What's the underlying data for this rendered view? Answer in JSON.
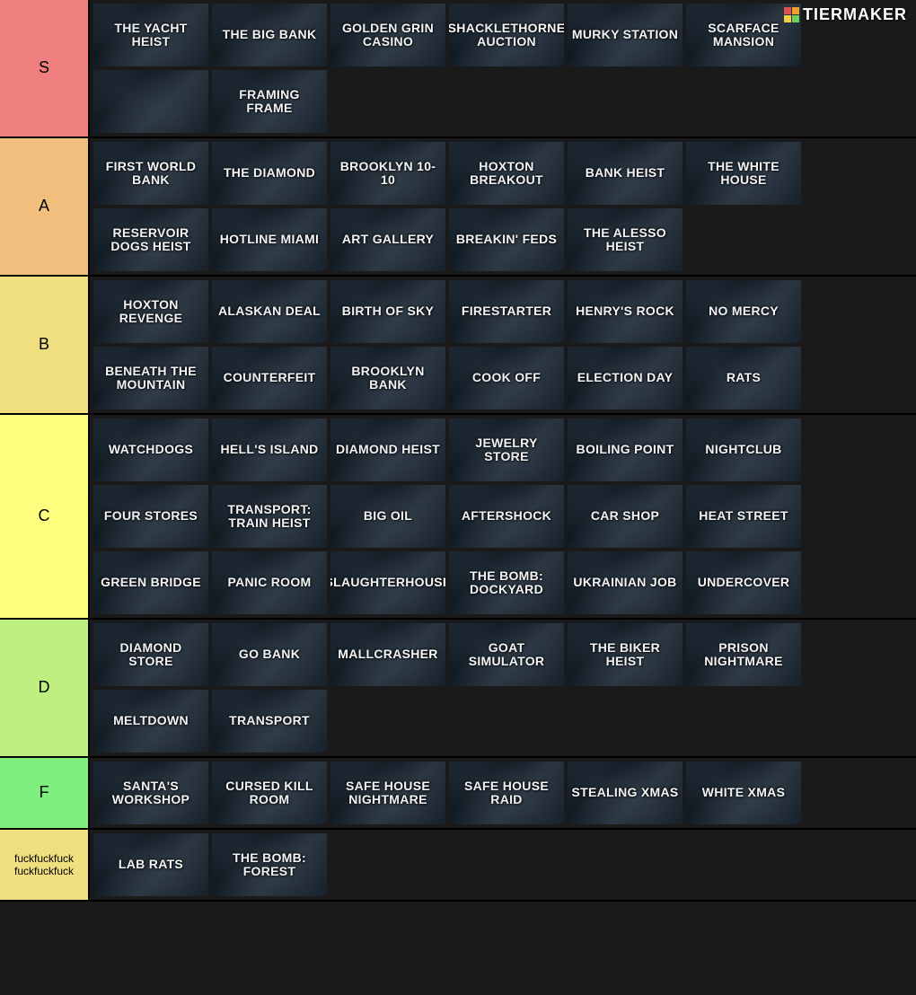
{
  "watermark": "TIERMAKER",
  "tier_colors": {
    "S": "#f07f7f",
    "A": "#f0bf7e",
    "B": "#f0df7f",
    "C": "#feff7f",
    "D": "#bff07f",
    "F": "#7fef7f",
    "G": "#f0df7f"
  },
  "tiers": [
    {
      "label": "S",
      "color_key": "S",
      "small": false,
      "items": [
        "THE YACHT HEIST",
        "THE BIG BANK",
        "GOLDEN GRIN CASINO",
        "SHACKLETHORNE AUCTION",
        "MURKY STATION",
        "SCARFACE MANSION",
        "",
        "FRAMING FRAME"
      ]
    },
    {
      "label": "A",
      "color_key": "A",
      "small": false,
      "items": [
        "FIRST WORLD BANK",
        "THE DIAMOND",
        "BROOKLYN 10-10",
        "HOXTON BREAKOUT",
        "BANK HEIST",
        "THE WHITE HOUSE",
        "RESERVOIR DOGS HEIST",
        "HOTLINE MIAMI",
        "ART GALLERY",
        "BREAKIN' FEDS",
        "THE ALESSO HEIST"
      ]
    },
    {
      "label": "B",
      "color_key": "B",
      "small": false,
      "items": [
        "HOXTON REVENGE",
        "ALASKAN DEAL",
        "BIRTH OF SKY",
        "FIRESTARTER",
        "HENRY'S ROCK",
        "NO MERCY",
        "BENEATH THE MOUNTAIN",
        "COUNTERFEIT",
        "BROOKLYN BANK",
        "COOK OFF",
        "ELECTION DAY",
        "RATS"
      ]
    },
    {
      "label": "C",
      "color_key": "C",
      "small": false,
      "items": [
        "WATCHDOGS",
        "HELL'S ISLAND",
        "DIAMOND HEIST",
        "JEWELRY STORE",
        "BOILING POINT",
        "NIGHTCLUB",
        "FOUR STORES",
        "TRANSPORT: TRAIN HEIST",
        "BIG OIL",
        "AFTERSHOCK",
        "CAR SHOP",
        "HEAT STREET",
        "GREEN BRIDGE",
        "PANIC ROOM",
        "SLAUGHTERHOUSE",
        "THE BOMB: DOCKYARD",
        "UKRAINIAN JOB",
        "UNDERCOVER"
      ]
    },
    {
      "label": "D",
      "color_key": "D",
      "small": false,
      "items": [
        "DIAMOND STORE",
        "GO BANK",
        "MALLCRASHER",
        "GOAT SIMULATOR",
        "THE BIKER HEIST",
        "PRISON NIGHTMARE",
        "MELTDOWN",
        "TRANSPORT"
      ]
    },
    {
      "label": "F",
      "color_key": "F",
      "small": false,
      "items": [
        "SANTA'S WORKSHOP",
        "CURSED KILL ROOM",
        "SAFE HOUSE NIGHTMARE",
        "SAFE HOUSE RAID",
        "STEALING XMAS",
        "WHITE XMAS"
      ]
    },
    {
      "label": "fuckfuckfuck fuckfuckfuck",
      "color_key": "G",
      "small": true,
      "items": [
        "LAB RATS",
        "THE BOMB: FOREST"
      ]
    }
  ]
}
